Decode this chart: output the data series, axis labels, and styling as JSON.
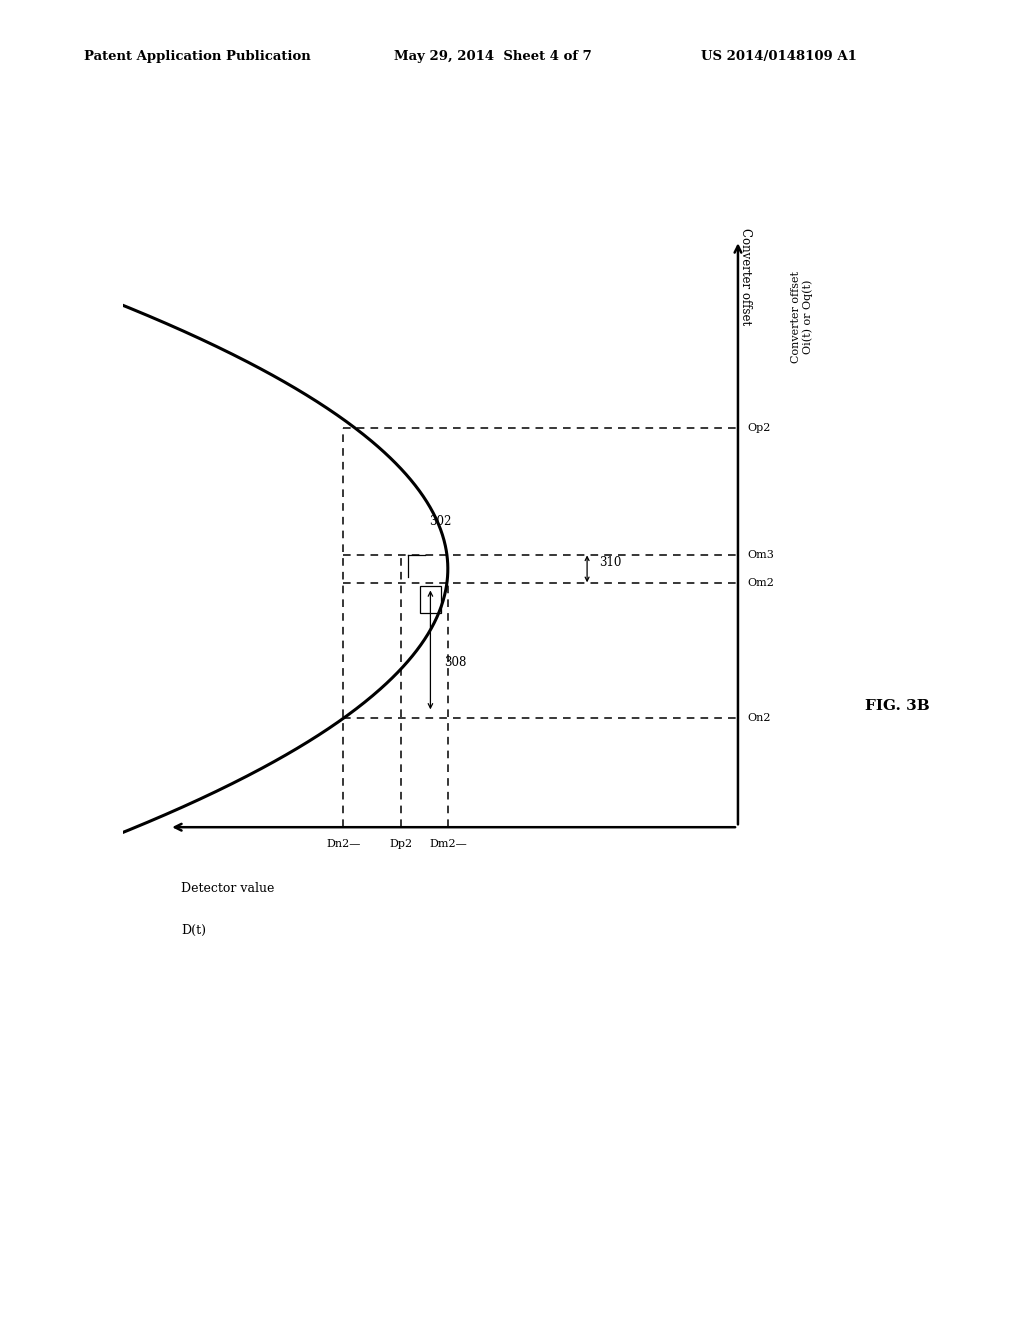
{
  "header_left": "Patent Application Publication",
  "header_mid": "May 29, 2014  Sheet 4 of 7",
  "header_right": "US 2014/0148109 A1",
  "fig_label": "FIG. 3B",
  "x_axis_label_line1": "Detector value",
  "x_axis_label_line2": "D(t)",
  "y_axis_label_line1": "Converter offset",
  "y_axis_label_line2": "Oi(t) or Oq(t)",
  "tick_Dn2": "Dn2—",
  "tick_Dp2": "Dp2",
  "tick_Dm2": "Dm2—",
  "tick_On2": "On2",
  "tick_Om2": "Om2",
  "tick_Om3": "Om3",
  "tick_Op2": "Op2",
  "label_302": "302",
  "label_308": "308",
  "label_310": "310",
  "bg_color": "#ffffff",
  "line_color": "#000000"
}
